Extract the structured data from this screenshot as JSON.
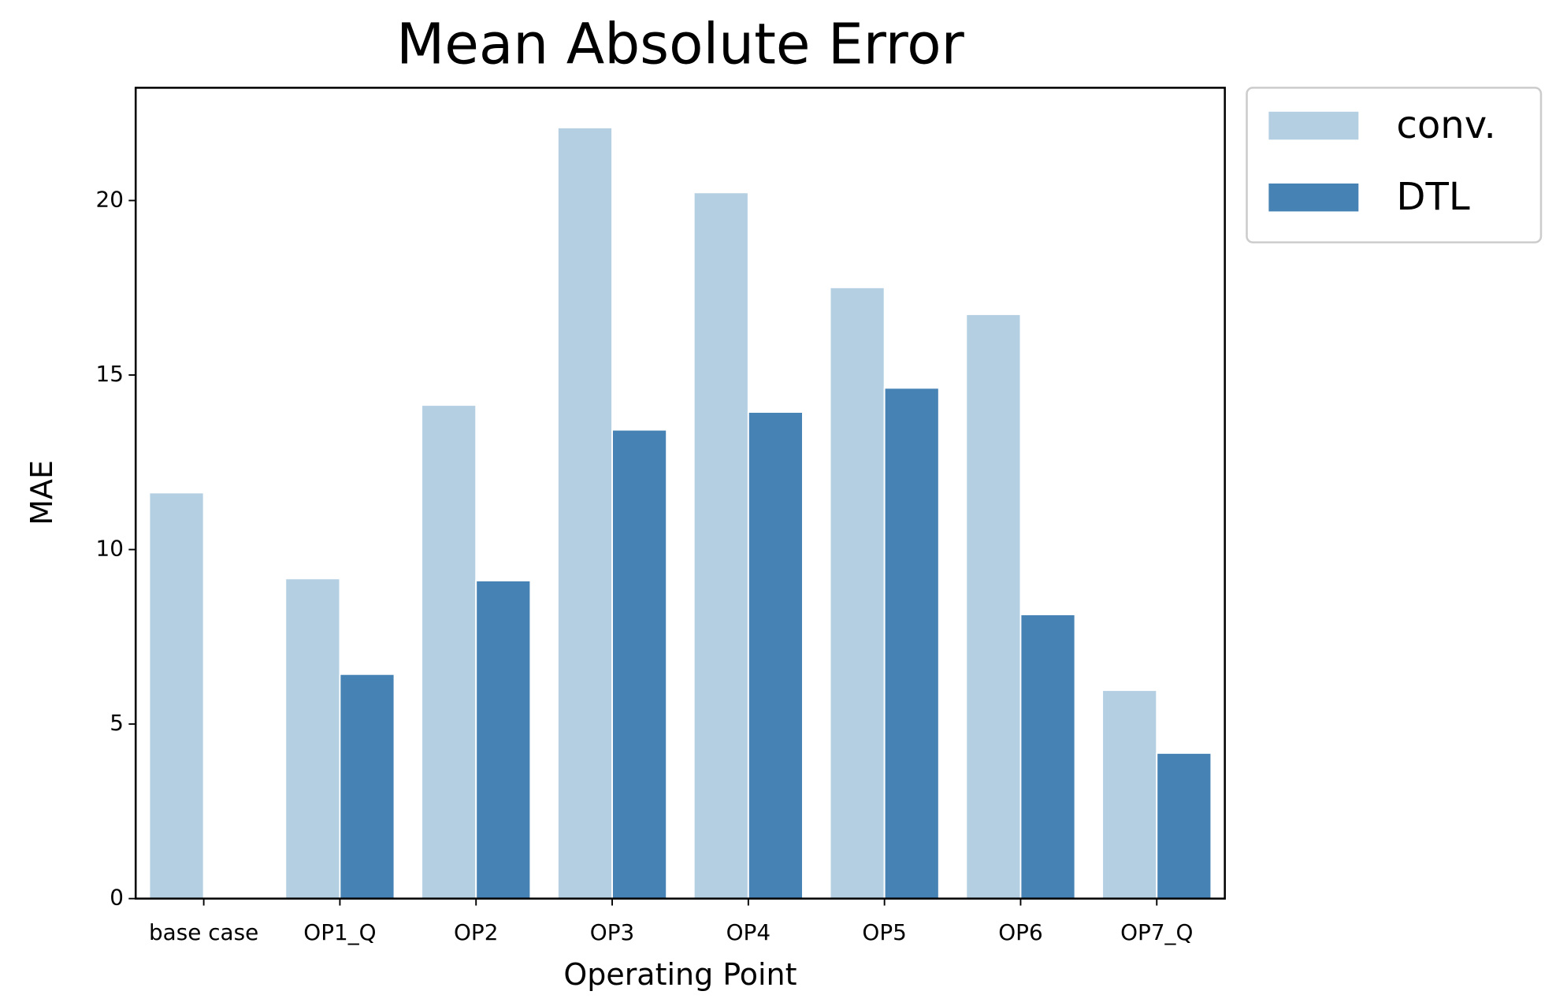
{
  "chart_data": {
    "type": "bar",
    "title": "Mean Absolute Error",
    "x_label": "Operating Point",
    "y_label": "MAE",
    "categories": [
      "base case",
      "OP1_Q",
      "OP2",
      "OP3",
      "OP4",
      "OP5",
      "OP6",
      "OP7_Q"
    ],
    "series": [
      {
        "name": "conv.",
        "color": "#b4cfe2",
        "values": [
          11.63,
          9.17,
          14.14,
          22.09,
          20.23,
          17.51,
          16.74,
          5.97
        ]
      },
      {
        "name": "DTL",
        "color": "#4682b4",
        "values": [
          null,
          6.43,
          9.11,
          13.43,
          13.94,
          14.63,
          8.14,
          4.17
        ]
      }
    ],
    "ylim": [
      0,
      23.23
    ],
    "yticks": [
      0,
      5,
      10,
      15,
      20
    ],
    "grid": false,
    "legend": "outside upper right"
  }
}
